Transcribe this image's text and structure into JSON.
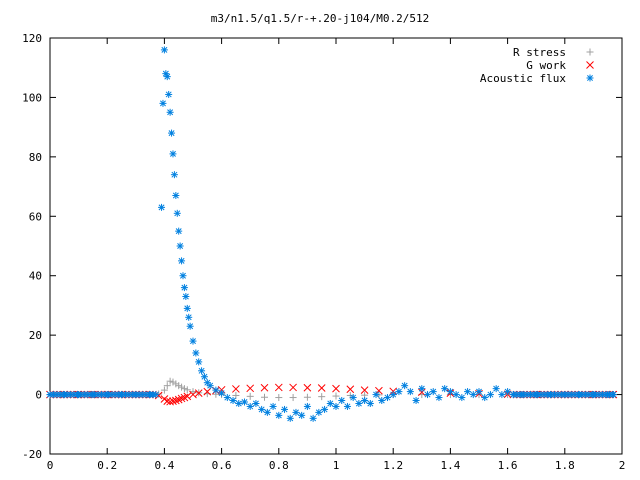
{
  "chart_data": {
    "type": "scatter",
    "title": "m3/n1.5/q1.5/r-+.20-j104/M0.2/512",
    "xlabel": "",
    "ylabel": "",
    "xlim": [
      0,
      2
    ],
    "ylim": [
      -20,
      120
    ],
    "xticks": [
      "0",
      "0.2",
      "0.4",
      "0.6",
      "0.8",
      "1",
      "1.2",
      "1.4",
      "1.6",
      "1.8",
      "2"
    ],
    "yticks": [
      "-20",
      "0",
      "20",
      "40",
      "60",
      "80",
      "100",
      "120"
    ],
    "grid": false,
    "legend_position": "top-right",
    "series": [
      {
        "name": "R stress",
        "marker": "plus",
        "color": "#a0a0a0",
        "x": [
          0.0,
          0.05,
          0.1,
          0.15,
          0.2,
          0.25,
          0.3,
          0.35,
          0.38,
          0.4,
          0.41,
          0.42,
          0.43,
          0.44,
          0.45,
          0.46,
          0.47,
          0.48,
          0.5,
          0.52,
          0.55,
          0.58,
          0.6,
          0.65,
          0.7,
          0.75,
          0.8,
          0.85,
          0.9,
          0.95,
          1.0,
          1.05,
          1.1,
          1.15,
          1.2,
          1.3,
          1.4,
          1.5,
          1.6,
          1.7,
          1.8,
          1.9,
          1.97
        ],
        "y": [
          0,
          0,
          0,
          0,
          0,
          0,
          0,
          0,
          0.2,
          1.5,
          3.0,
          4.5,
          4.2,
          3.6,
          3.0,
          2.5,
          2.0,
          1.6,
          1.0,
          0.6,
          0.3,
          0.1,
          0,
          -0.3,
          -0.6,
          -0.9,
          -1.0,
          -1.0,
          -0.9,
          -0.7,
          -0.5,
          -0.3,
          -0.2,
          -0.1,
          0,
          0,
          0,
          0,
          0,
          0,
          0,
          0,
          0
        ]
      },
      {
        "name": "G work",
        "marker": "cross",
        "color": "#ff0000",
        "x": [
          0.0,
          0.05,
          0.1,
          0.15,
          0.2,
          0.25,
          0.3,
          0.35,
          0.38,
          0.4,
          0.41,
          0.42,
          0.43,
          0.44,
          0.45,
          0.46,
          0.47,
          0.48,
          0.5,
          0.52,
          0.55,
          0.58,
          0.6,
          0.65,
          0.7,
          0.75,
          0.8,
          0.85,
          0.9,
          0.95,
          1.0,
          1.05,
          1.1,
          1.15,
          1.2,
          1.3,
          1.4,
          1.5,
          1.6,
          1.7,
          1.8,
          1.9,
          1.97
        ],
        "y": [
          0,
          0,
          0,
          0,
          0,
          0,
          0,
          0,
          -0.3,
          -1.5,
          -2.2,
          -2.4,
          -2.2,
          -2.0,
          -1.7,
          -1.3,
          -1.0,
          -0.6,
          0.0,
          0.5,
          1.0,
          1.3,
          1.6,
          1.9,
          2.1,
          2.3,
          2.4,
          2.4,
          2.3,
          2.2,
          2.0,
          1.8,
          1.5,
          1.3,
          1.1,
          0.8,
          0.5,
          0.3,
          0.1,
          0.05,
          0,
          0,
          0
        ]
      },
      {
        "name": "Acoustic flux",
        "marker": "star",
        "color": "#0080e0",
        "x": [
          0.0,
          0.05,
          0.1,
          0.15,
          0.2,
          0.25,
          0.3,
          0.35,
          0.37,
          0.39,
          0.395,
          0.4,
          0.405,
          0.41,
          0.415,
          0.42,
          0.425,
          0.43,
          0.435,
          0.44,
          0.445,
          0.45,
          0.455,
          0.46,
          0.465,
          0.47,
          0.475,
          0.48,
          0.485,
          0.49,
          0.5,
          0.51,
          0.52,
          0.53,
          0.54,
          0.55,
          0.56,
          0.58,
          0.6,
          0.62,
          0.64,
          0.66,
          0.68,
          0.7,
          0.72,
          0.74,
          0.76,
          0.78,
          0.8,
          0.82,
          0.84,
          0.86,
          0.88,
          0.9,
          0.92,
          0.94,
          0.96,
          0.98,
          1.0,
          1.02,
          1.04,
          1.06,
          1.08,
          1.1,
          1.12,
          1.14,
          1.16,
          1.18,
          1.2,
          1.22,
          1.24,
          1.26,
          1.28,
          1.3,
          1.32,
          1.34,
          1.36,
          1.38,
          1.4,
          1.42,
          1.44,
          1.46,
          1.48,
          1.5,
          1.52,
          1.54,
          1.56,
          1.58,
          1.6,
          1.62,
          1.65,
          1.7,
          1.75,
          1.8,
          1.85,
          1.9,
          1.95,
          1.97
        ],
        "y": [
          0,
          0,
          0,
          0,
          0,
          0,
          0,
          0,
          0,
          63,
          98,
          116,
          108,
          107,
          101,
          95,
          88,
          81,
          74,
          67,
          61,
          55,
          50,
          45,
          40,
          36,
          33,
          29,
          26,
          23,
          18,
          14,
          11,
          8,
          6,
          4,
          3,
          1.5,
          0.5,
          -1,
          -2,
          -3,
          -2.5,
          -4,
          -3,
          -5,
          -6,
          -4,
          -7,
          -5,
          -8,
          -6,
          -7,
          -4,
          -8,
          -6,
          -5,
          -3,
          -4,
          -2,
          -4,
          -1,
          -3,
          -2,
          -3,
          0,
          -2,
          -1,
          0,
          1,
          3,
          1,
          -2,
          2,
          0,
          1,
          -1,
          2,
          1,
          0,
          -1,
          1,
          0,
          1,
          -1,
          0,
          2,
          0,
          1,
          0,
          0,
          0,
          0,
          0,
          0,
          0,
          0,
          0
        ]
      }
    ]
  }
}
